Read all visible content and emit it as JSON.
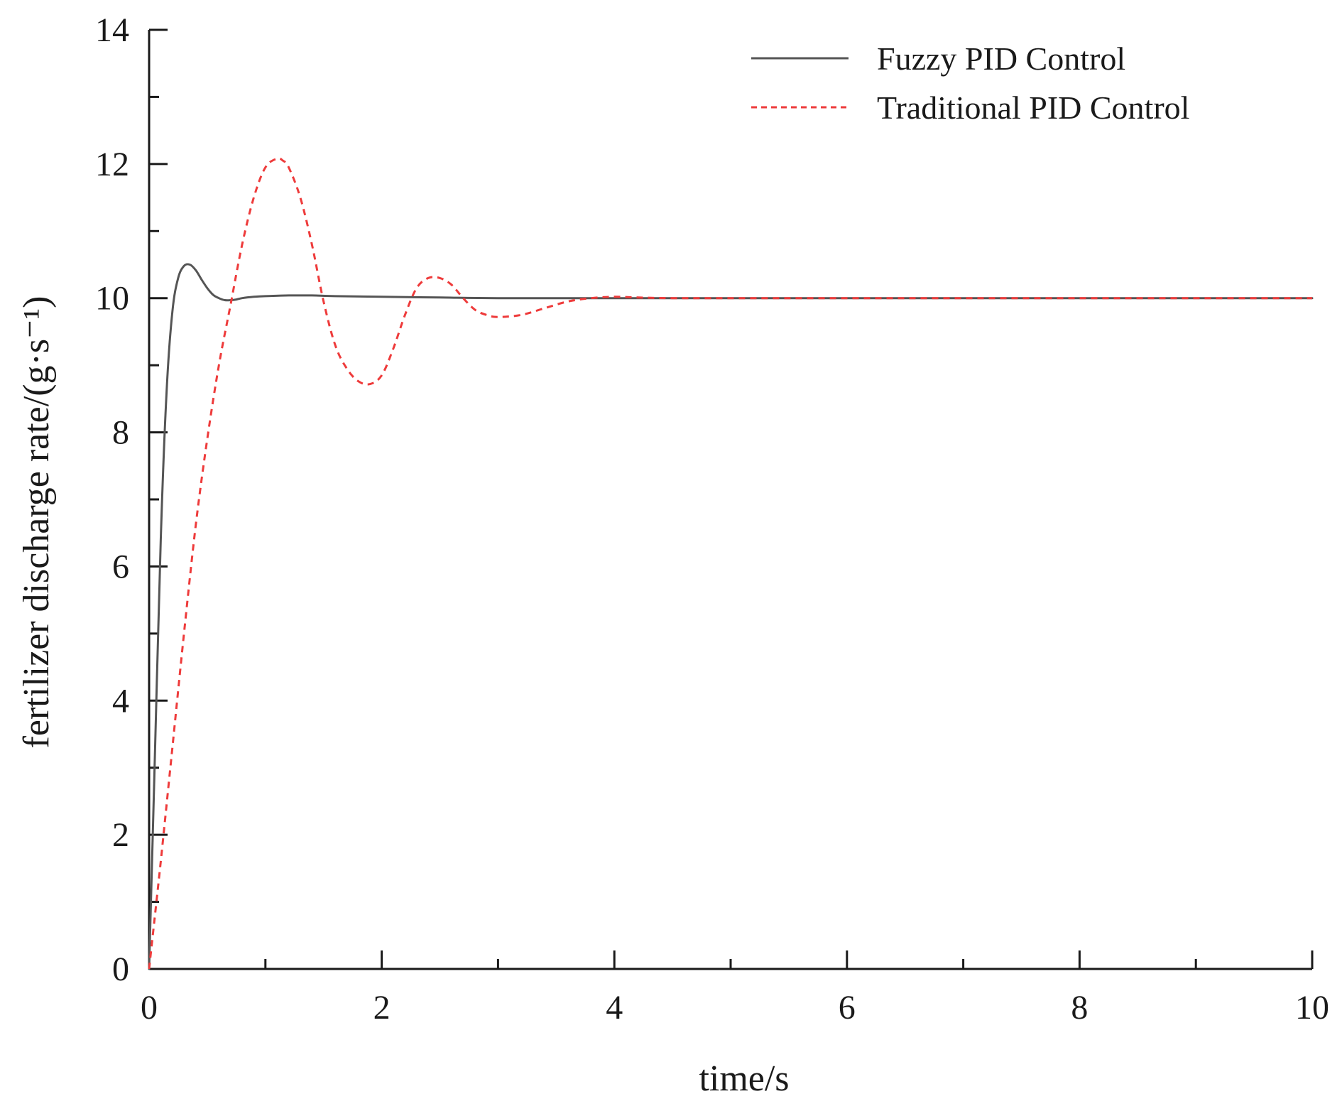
{
  "chart_data": {
    "type": "line",
    "title": "",
    "xlabel": "time/s",
    "ylabel": "fertilizer discharge rate/(g·s⁻¹)",
    "xlim": [
      0,
      10
    ],
    "ylim": [
      0,
      14
    ],
    "xticks": [
      0,
      2,
      4,
      6,
      8,
      10
    ],
    "yticks": [
      0,
      2,
      4,
      6,
      8,
      10,
      12,
      14
    ],
    "grid": false,
    "legend_position": "top-right",
    "series": [
      {
        "name": "Fuzzy PID Control",
        "color": "#555555",
        "style": "solid",
        "x": [
          0,
          0.05,
          0.1,
          0.15,
          0.2,
          0.25,
          0.3,
          0.35,
          0.4,
          0.45,
          0.5,
          0.55,
          0.6,
          0.65,
          0.7,
          0.75,
          0.8,
          0.9,
          1.0,
          1.2,
          1.4,
          1.6,
          2.0,
          2.5,
          3.0,
          4.0,
          5.0,
          6.0,
          7.0,
          8.0,
          9.0,
          10.0
        ],
        "y": [
          0,
          3.2,
          6.4,
          8.6,
          9.8,
          10.3,
          10.48,
          10.5,
          10.42,
          10.28,
          10.15,
          10.05,
          10.0,
          9.97,
          9.97,
          9.98,
          10.0,
          10.02,
          10.03,
          10.04,
          10.04,
          10.03,
          10.02,
          10.01,
          10.0,
          10.0,
          10.0,
          10.0,
          10.0,
          10.0,
          10.0,
          10.0
        ]
      },
      {
        "name": "Traditional PID Control",
        "color": "#ee3b3b",
        "style": "dashed",
        "x": [
          0,
          0.1,
          0.2,
          0.3,
          0.4,
          0.5,
          0.6,
          0.7,
          0.8,
          0.9,
          1.0,
          1.1,
          1.15,
          1.2,
          1.3,
          1.4,
          1.5,
          1.6,
          1.7,
          1.8,
          1.9,
          2.0,
          2.1,
          2.2,
          2.3,
          2.4,
          2.5,
          2.6,
          2.7,
          2.8,
          2.9,
          3.0,
          3.2,
          3.4,
          3.6,
          3.8,
          4.0,
          4.2,
          4.5,
          5.0,
          6.0,
          7.0,
          8.0,
          9.0,
          10.0
        ],
        "y": [
          0,
          1.6,
          3.3,
          5.0,
          6.6,
          7.9,
          9.0,
          9.9,
          10.8,
          11.5,
          11.95,
          12.08,
          12.05,
          11.95,
          11.5,
          10.8,
          9.95,
          9.3,
          8.95,
          8.76,
          8.72,
          8.85,
          9.25,
          9.75,
          10.15,
          10.3,
          10.3,
          10.2,
          10.0,
          9.83,
          9.75,
          9.72,
          9.75,
          9.85,
          9.95,
          10.0,
          10.02,
          10.01,
          10.0,
          10.0,
          10.0,
          10.0,
          10.0,
          10.0,
          10.0
        ]
      }
    ]
  }
}
